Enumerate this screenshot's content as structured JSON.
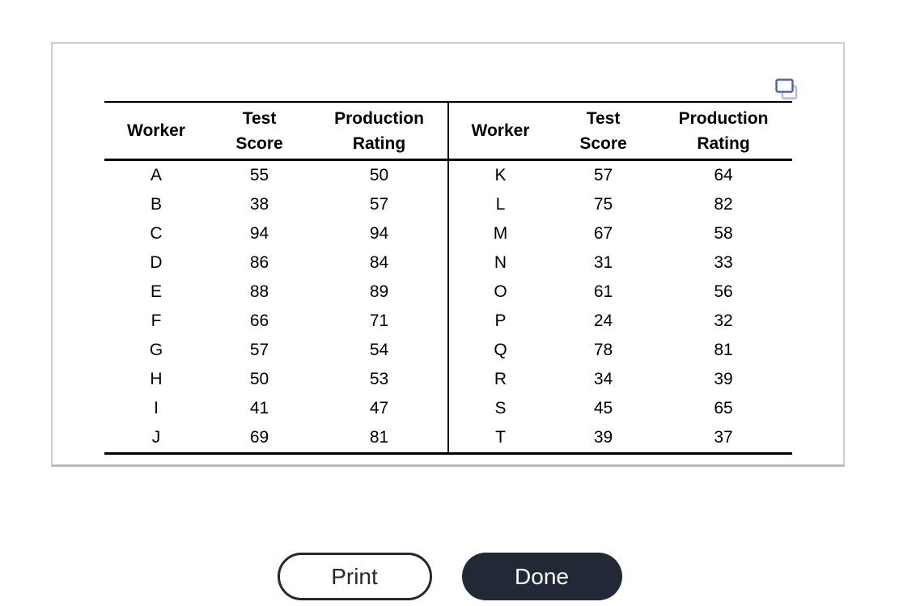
{
  "panel": {
    "icon": "copy-icon"
  },
  "table": {
    "columns": [
      {
        "id": "worker",
        "label_lines": [
          "Worker"
        ]
      },
      {
        "id": "test_score",
        "label_lines": [
          "Test",
          "Score"
        ]
      },
      {
        "id": "production_rating",
        "label_lines": [
          "Production",
          "Rating"
        ]
      }
    ],
    "left_rows": [
      {
        "worker": "A",
        "test_score": "55",
        "production_rating": "50"
      },
      {
        "worker": "B",
        "test_score": "38",
        "production_rating": "57"
      },
      {
        "worker": "C",
        "test_score": "94",
        "production_rating": "94"
      },
      {
        "worker": "D",
        "test_score": "86",
        "production_rating": "84"
      },
      {
        "worker": "E",
        "test_score": "88",
        "production_rating": "89"
      },
      {
        "worker": "F",
        "test_score": "66",
        "production_rating": "71"
      },
      {
        "worker": "G",
        "test_score": "57",
        "production_rating": "54"
      },
      {
        "worker": "H",
        "test_score": "50",
        "production_rating": "53"
      },
      {
        "worker": "I",
        "test_score": "41",
        "production_rating": "47"
      },
      {
        "worker": "J",
        "test_score": "69",
        "production_rating": "81"
      }
    ],
    "right_rows": [
      {
        "worker": "K",
        "test_score": "57",
        "production_rating": "64"
      },
      {
        "worker": "L",
        "test_score": "75",
        "production_rating": "82"
      },
      {
        "worker": "M",
        "test_score": "67",
        "production_rating": "58"
      },
      {
        "worker": "N",
        "test_score": "31",
        "production_rating": "33"
      },
      {
        "worker": "O",
        "test_score": "61",
        "production_rating": "56"
      },
      {
        "worker": "P",
        "test_score": "24",
        "production_rating": "32"
      },
      {
        "worker": "Q",
        "test_score": "78",
        "production_rating": "81"
      },
      {
        "worker": "R",
        "test_score": "34",
        "production_rating": "39"
      },
      {
        "worker": "S",
        "test_score": "45",
        "production_rating": "65"
      },
      {
        "worker": "T",
        "test_score": "39",
        "production_rating": "37"
      }
    ]
  },
  "buttons": {
    "print_label": "Print",
    "done_label": "Done"
  },
  "colors": {
    "button_dark": "#212937",
    "icon_front": "#5061a8",
    "icon_back": "#afb9e3",
    "panel_border": "#cdcdcd",
    "table_line": "#000000"
  }
}
